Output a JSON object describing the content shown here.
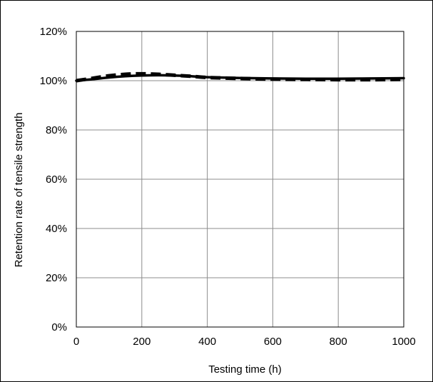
{
  "chart_data": {
    "type": "line",
    "title": "",
    "xlabel": "Testing time (h)",
    "ylabel": "Retention rate of tensile strength",
    "xlim": [
      0,
      1000
    ],
    "ylim": [
      0,
      120
    ],
    "x_ticks": [
      0,
      200,
      400,
      600,
      800,
      1000
    ],
    "x_tick_labels": [
      "0",
      "200",
      "400",
      "600",
      "800",
      "1000"
    ],
    "y_ticks": [
      0,
      20,
      40,
      60,
      80,
      100,
      120
    ],
    "y_tick_labels": [
      "0%",
      "20%",
      "40%",
      "60%",
      "80%",
      "100%",
      "120%"
    ],
    "grid": true,
    "legend": "none",
    "series": [
      {
        "style": "solid",
        "color": "#000000",
        "x": [
          0,
          50,
          100,
          150,
          200,
          250,
          300,
          350,
          400,
          500,
          600,
          700,
          800,
          900,
          1000
        ],
        "y": [
          100,
          100.6,
          101.3,
          101.8,
          102.1,
          102.2,
          102.1,
          101.8,
          101.4,
          101.1,
          100.9,
          100.8,
          100.8,
          100.9,
          101.0
        ]
      },
      {
        "style": "dashed",
        "color": "#000000",
        "x": [
          0,
          50,
          100,
          150,
          200,
          250,
          300,
          350,
          400,
          500,
          600,
          700,
          800,
          900,
          1000
        ],
        "y": [
          100,
          101.0,
          102.0,
          102.6,
          102.8,
          102.6,
          102.2,
          101.8,
          101.3,
          100.9,
          100.6,
          100.5,
          100.4,
          100.4,
          100.5
        ]
      }
    ]
  }
}
